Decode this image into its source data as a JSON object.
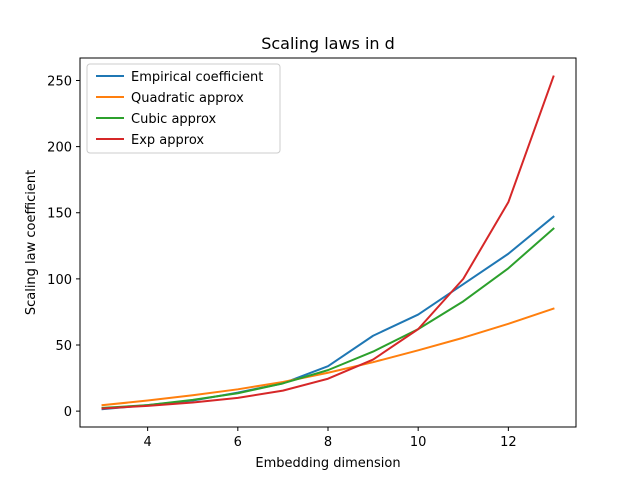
{
  "chart_data": {
    "type": "line",
    "title": "Scaling laws in d",
    "xlabel": "Embedding dimension",
    "ylabel": "Scaling law coefficient",
    "xlim": [
      2.5,
      13.5
    ],
    "ylim": [
      -12,
      267
    ],
    "x": [
      3,
      4,
      5,
      6,
      7,
      8,
      9,
      10,
      11,
      12,
      13
    ],
    "xticks": [
      4,
      6,
      8,
      10,
      12
    ],
    "yticks": [
      0,
      50,
      100,
      150,
      200,
      250
    ],
    "legend_position": "top-left",
    "grid": false,
    "series": [
      {
        "name": "Empirical coefficient",
        "color": "#1f77b4",
        "values": [
          1.5,
          4.5,
          8,
          14,
          21,
          34,
          57,
          73,
          96,
          119,
          147
        ]
      },
      {
        "name": "Quadratic approx",
        "color": "#ff7f0e",
        "values": [
          4.5,
          8,
          12,
          16.5,
          22,
          29,
          37,
          46,
          55.5,
          66,
          77.5
        ]
      },
      {
        "name": "Cubic approx",
        "color": "#2ca02c",
        "values": [
          2.5,
          4.5,
          8.5,
          13.5,
          21,
          31,
          45,
          62,
          83,
          108,
          138
        ]
      },
      {
        "name": "Exp approx",
        "color": "#d62728",
        "values": [
          2,
          4,
          6.5,
          10,
          15.5,
          24.5,
          39,
          62,
          100,
          158,
          253
        ]
      }
    ]
  }
}
